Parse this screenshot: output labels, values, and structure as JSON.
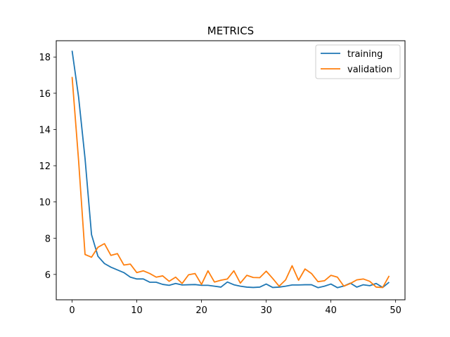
{
  "chart_data": {
    "type": "line",
    "title": "METRICS",
    "xlabel": "",
    "ylabel": "",
    "xlim": [
      -2.45,
      51.45
    ],
    "ylim": [
      4.6,
      18.9
    ],
    "x_ticks": [
      0,
      10,
      20,
      30,
      40,
      50
    ],
    "y_ticks": [
      6,
      8,
      10,
      12,
      14,
      16,
      18
    ],
    "grid": false,
    "legend_position": "top-right",
    "x": [
      0,
      1,
      2,
      3,
      4,
      5,
      6,
      7,
      8,
      9,
      10,
      11,
      12,
      13,
      14,
      15,
      16,
      17,
      18,
      19,
      20,
      21,
      22,
      23,
      24,
      25,
      26,
      27,
      28,
      29,
      30,
      31,
      32,
      33,
      34,
      35,
      36,
      37,
      38,
      39,
      40,
      41,
      42,
      43,
      44,
      45,
      46,
      47,
      48,
      49
    ],
    "series": [
      {
        "name": "training",
        "color": "#1f77b4",
        "values": [
          18.35,
          15.8,
          12.4,
          8.2,
          7.0,
          6.6,
          6.4,
          6.25,
          6.1,
          5.85,
          5.75,
          5.75,
          5.57,
          5.57,
          5.45,
          5.4,
          5.5,
          5.42,
          5.43,
          5.44,
          5.4,
          5.4,
          5.35,
          5.3,
          5.58,
          5.43,
          5.35,
          5.3,
          5.28,
          5.3,
          5.47,
          5.28,
          5.3,
          5.35,
          5.42,
          5.42,
          5.43,
          5.43,
          5.27,
          5.35,
          5.47,
          5.27,
          5.36,
          5.52,
          5.3,
          5.43,
          5.38,
          5.5,
          5.28,
          5.57
        ]
      },
      {
        "name": "validation",
        "color": "#ff7f0e",
        "values": [
          16.9,
          12.3,
          7.1,
          6.95,
          7.5,
          7.7,
          7.05,
          7.15,
          6.52,
          6.57,
          6.1,
          6.2,
          6.05,
          5.85,
          5.92,
          5.62,
          5.85,
          5.5,
          5.98,
          6.05,
          5.45,
          6.2,
          5.58,
          5.68,
          5.75,
          6.2,
          5.52,
          5.95,
          5.83,
          5.82,
          6.18,
          5.78,
          5.35,
          5.7,
          6.48,
          5.68,
          6.3,
          6.05,
          5.6,
          5.65,
          5.95,
          5.85,
          5.35,
          5.5,
          5.7,
          5.75,
          5.62,
          5.3,
          5.28,
          5.92
        ]
      }
    ]
  }
}
